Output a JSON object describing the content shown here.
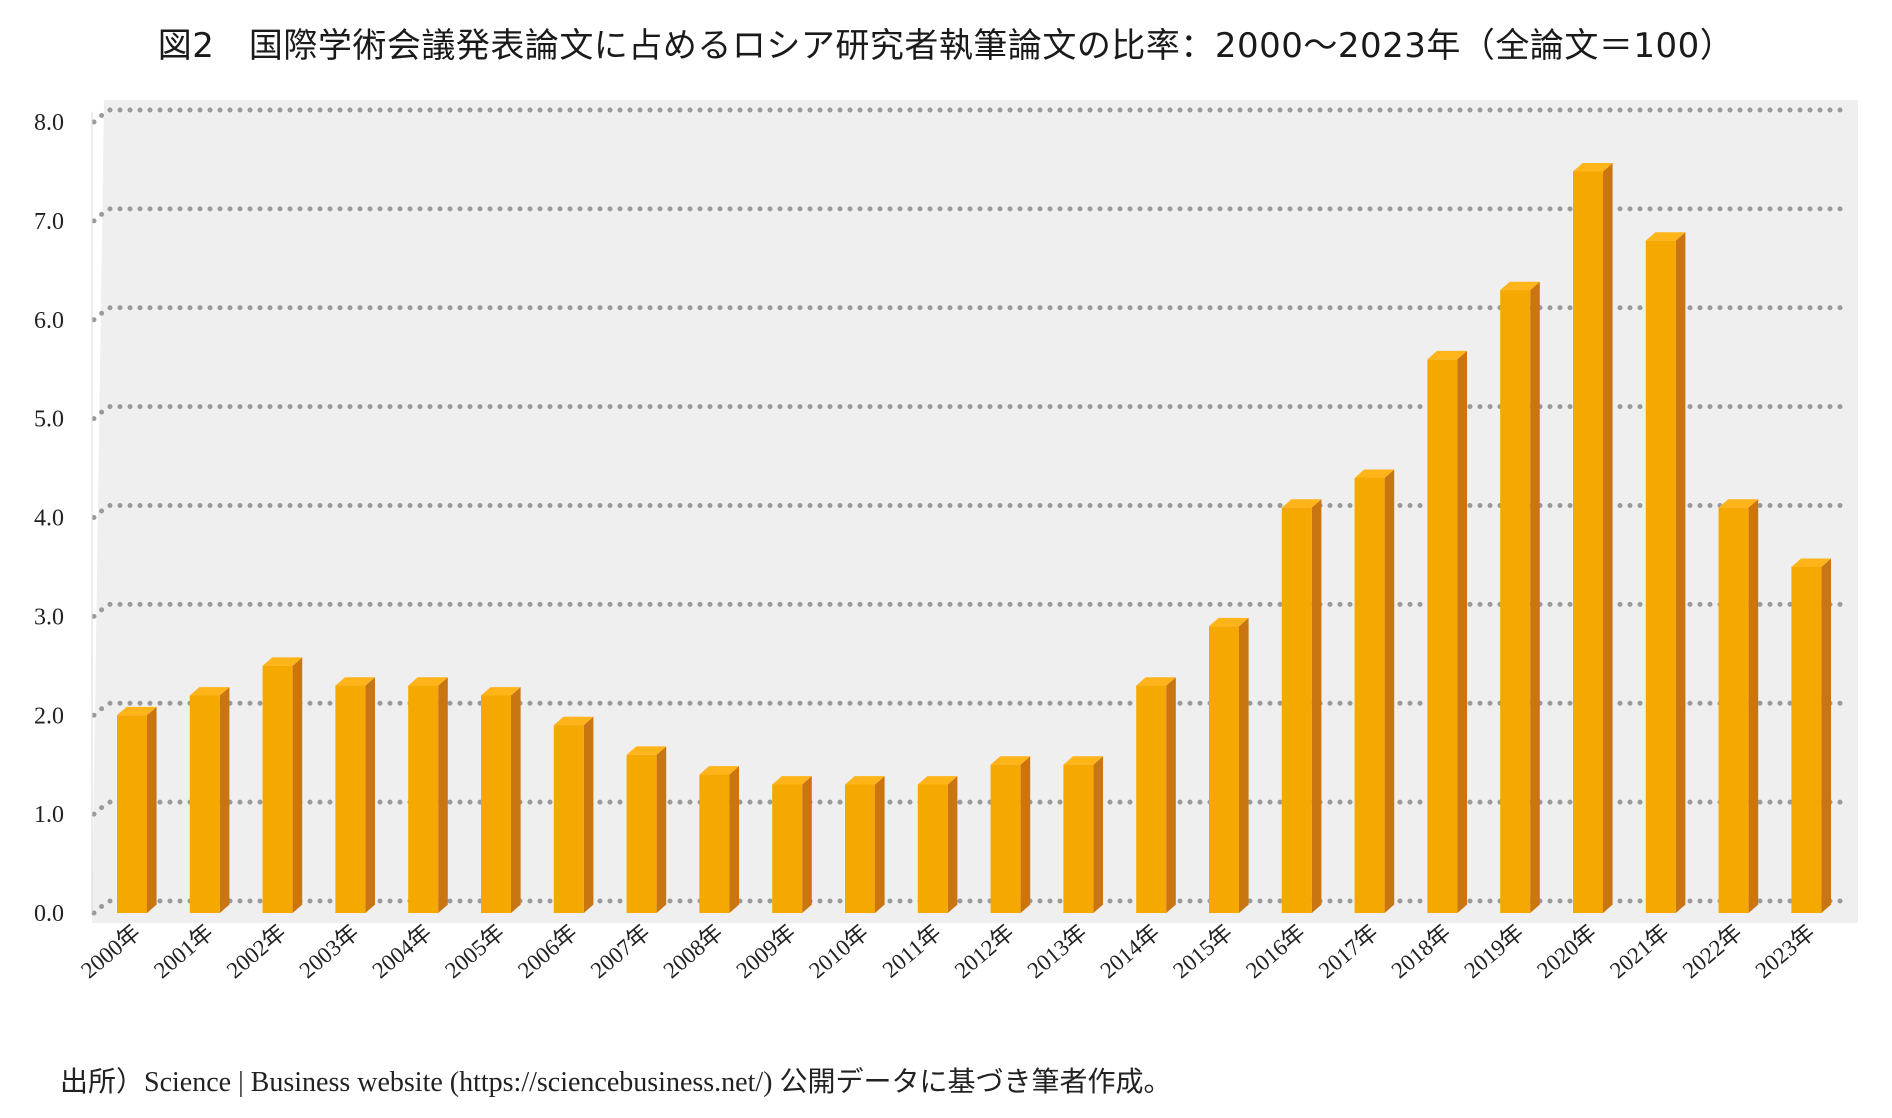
{
  "title": "図2　国際学術会議発表論文に占めるロシア研究者執筆論文の比率：2000～2023年（全論文＝100）",
  "source": "出所）Science | Business website (https://sciencebusiness.net/) 公開データに基づき筆者作成。",
  "colors": {
    "bar_front": "#F5A800",
    "bar_side": "#C97512",
    "bar_top": "#FFB41A",
    "plot_bg": "#EFEFEF",
    "grid": "#9A9A9A"
  },
  "chart_data": {
    "type": "bar",
    "title": "図2　国際学術会議発表論文に占めるロシア研究者執筆論文の比率：2000～2023年（全論文＝100）",
    "xlabel": "",
    "ylabel": "",
    "ylim": [
      0,
      8
    ],
    "yticks": [
      "0.0",
      "1.0",
      "2.0",
      "3.0",
      "4.0",
      "5.0",
      "6.0",
      "7.0",
      "8.0"
    ],
    "grid": true,
    "categories": [
      "2000年",
      "2001年",
      "2002年",
      "2003年",
      "2004年",
      "2005年",
      "2006年",
      "2007年",
      "2008年",
      "2009年",
      "2010年",
      "2011年",
      "2012年",
      "2013年",
      "2014年",
      "2015年",
      "2016年",
      "2017年",
      "2018年",
      "2019年",
      "2020年",
      "2021年",
      "2022年",
      "2023年"
    ],
    "values": [
      2.0,
      2.2,
      2.5,
      2.3,
      2.3,
      2.2,
      1.9,
      1.6,
      1.4,
      1.3,
      1.3,
      1.3,
      1.5,
      1.5,
      2.3,
      2.9,
      4.1,
      4.4,
      5.6,
      6.3,
      7.5,
      6.8,
      4.1,
      3.5
    ]
  }
}
